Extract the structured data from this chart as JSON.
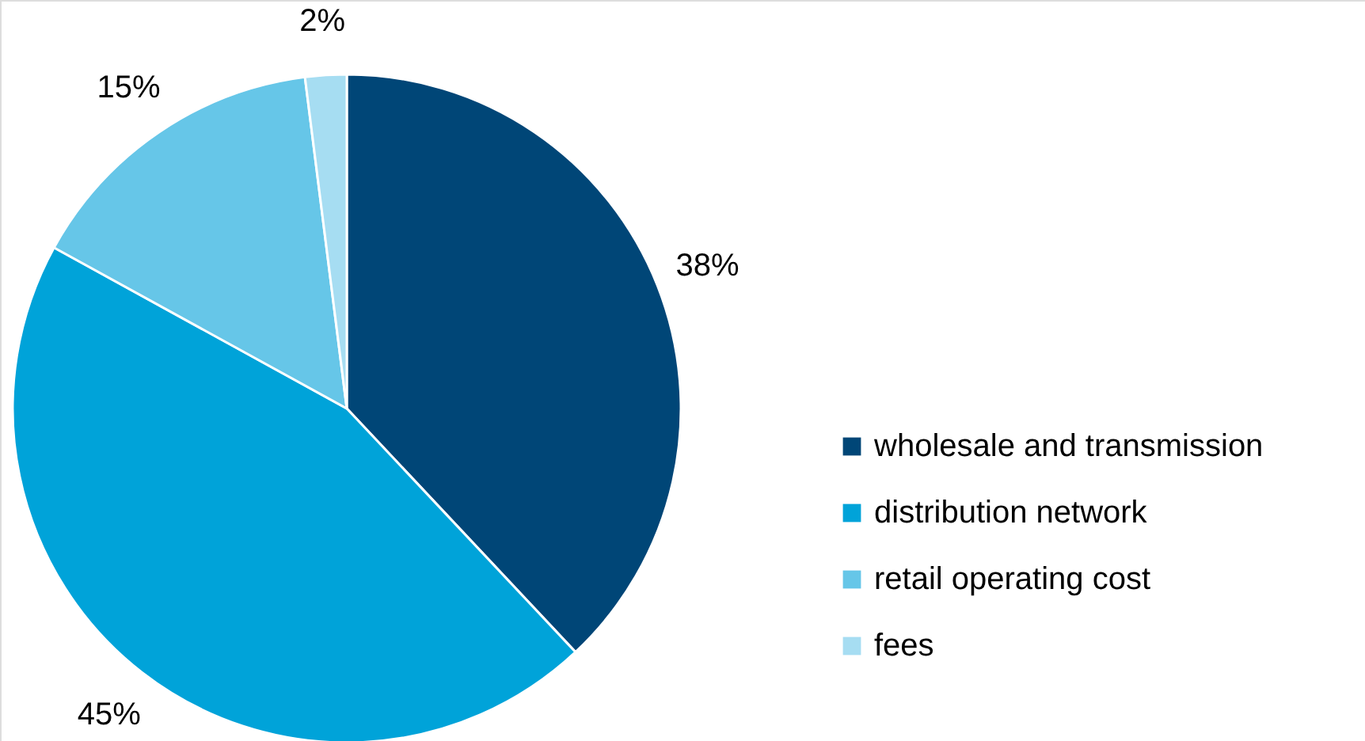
{
  "chart_data": {
    "type": "pie",
    "categories": [
      "wholesale and transmission",
      "distribution network",
      "retail operating cost",
      "fees"
    ],
    "values": [
      38,
      45,
      15,
      2
    ],
    "colors": [
      "#004677",
      "#00a3d9",
      "#66c6e8",
      "#a6ddf2"
    ],
    "value_labels": [
      "38%",
      "45%",
      "15%",
      "2%"
    ],
    "legend": "right"
  }
}
